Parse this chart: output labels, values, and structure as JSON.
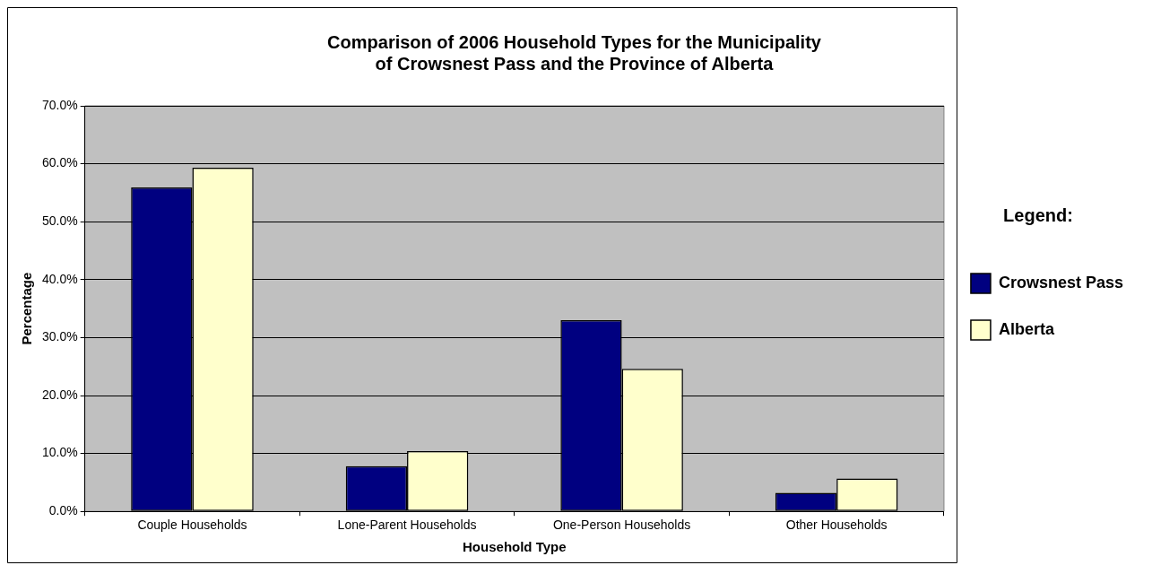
{
  "chart_data": {
    "type": "bar",
    "title": "Comparison of 2006 Household Types for the Municipality of Crowsnest Pass and the Province of Alberta",
    "xlabel": "Household Type",
    "ylabel": "Percentage",
    "legend_title": "Legend:",
    "categories": [
      "Couple Households",
      "Lone-Parent Households",
      "One-Person Households",
      "Other Households"
    ],
    "series": [
      {
        "name": "Crowsnest Pass",
        "color": "#000080",
        "values": [
          55.9,
          7.8,
          33.0,
          3.2
        ]
      },
      {
        "name": "Alberta",
        "color": "#ffffcc",
        "values": [
          59.3,
          10.4,
          24.6,
          5.7
        ]
      }
    ],
    "ylim": [
      0,
      70
    ],
    "yticks": [
      {
        "value": 0,
        "label": "0.0%"
      },
      {
        "value": 10,
        "label": "10.0%"
      },
      {
        "value": 20,
        "label": "20.0%"
      },
      {
        "value": 30,
        "label": "30.0%"
      },
      {
        "value": 40,
        "label": "40.0%"
      },
      {
        "value": 50,
        "label": "50.0%"
      },
      {
        "value": 60,
        "label": "60.0%"
      },
      {
        "value": 70,
        "label": "70.0%"
      }
    ],
    "grid": "y",
    "legend": "right"
  }
}
